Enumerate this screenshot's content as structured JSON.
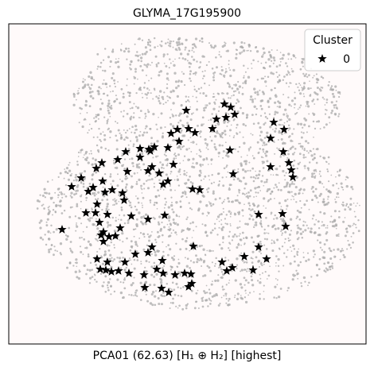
{
  "chart_data": {
    "type": "scatter",
    "title": "GLYMA_17G195900",
    "xlabel": "PCA01 (62.63) [H₁ ⊕ H₂] [highest]",
    "ylabel": "",
    "grid": false,
    "axes_visible": false,
    "legend": {
      "title": "Cluster",
      "placement": "top-right",
      "entries": [
        {
          "label": "0",
          "marker": "star",
          "color": "#000000"
        }
      ]
    },
    "colors": {
      "background_cells": "#a9a9a9",
      "highlight": "#000000",
      "plot_background": "#fffafa"
    },
    "series": [
      {
        "name": "0",
        "marker": "star",
        "points": [
          [
            234,
            139
          ],
          [
            282,
            131
          ],
          [
            290,
            135
          ],
          [
            284,
            148
          ],
          [
            295,
            144
          ],
          [
            272,
            150
          ],
          [
            267,
            162
          ],
          [
            237,
            162
          ],
          [
            245,
            167
          ],
          [
            223,
            163
          ],
          [
            215,
            168
          ],
          [
            225,
            178
          ],
          [
            211,
            186
          ],
          [
            194,
            185
          ],
          [
            187,
            188
          ],
          [
            176,
            187
          ],
          [
            158,
            191
          ],
          [
            176,
            198
          ],
          [
            148,
            201
          ],
          [
            128,
            205
          ],
          [
            121,
            212
          ],
          [
            102,
            224
          ],
          [
            90,
            235
          ],
          [
            111,
            241
          ],
          [
            117,
            236
          ],
          [
            129,
            228
          ],
          [
            141,
            239
          ],
          [
            154,
            243
          ],
          [
            160,
            216
          ],
          [
            186,
            215
          ],
          [
            200,
            218
          ],
          [
            211,
            228
          ],
          [
            205,
            232
          ],
          [
            218,
            207
          ],
          [
            242,
            238
          ],
          [
            251,
            239
          ],
          [
            189,
            190
          ],
          [
            191,
            210
          ],
          [
            289,
            189
          ],
          [
            293,
            219
          ],
          [
            344,
            154
          ],
          [
            357,
            163
          ],
          [
            340,
            174
          ],
          [
            356,
            191
          ],
          [
            363,
            205
          ],
          [
            340,
            210
          ],
          [
            366,
            214
          ],
          [
            368,
            223
          ],
          [
            132,
            242
          ],
          [
            156,
            252
          ],
          [
            122,
            257
          ],
          [
            108,
            268
          ],
          [
            120,
            268
          ],
          [
            135,
            270
          ],
          [
            125,
            280
          ],
          [
            165,
            272
          ],
          [
            186,
            276
          ],
          [
            207,
            271
          ],
          [
            78,
            289
          ],
          [
            130,
            292
          ],
          [
            137,
            298
          ],
          [
            127,
            296
          ],
          [
            145,
            297
          ],
          [
            151,
            287
          ],
          [
            130,
            304
          ],
          [
            122,
            326
          ],
          [
            135,
            330
          ],
          [
            157,
            330
          ],
          [
            170,
            320
          ],
          [
            186,
            318
          ],
          [
            191,
            311
          ],
          [
            204,
            328
          ],
          [
            197,
            339
          ],
          [
            126,
            339
          ],
          [
            133,
            340
          ],
          [
            140,
            342
          ],
          [
            149,
            341
          ],
          [
            162,
            344
          ],
          [
            181,
            346
          ],
          [
            205,
            344
          ],
          [
            220,
            346
          ],
          [
            232,
            344
          ],
          [
            240,
            345
          ],
          [
            243,
            310
          ],
          [
            279,
            330
          ],
          [
            285,
            341
          ],
          [
            292,
            337
          ],
          [
            307,
            323
          ],
          [
            318,
            340
          ],
          [
            335,
            326
          ],
          [
            325,
            311
          ],
          [
            325,
            270
          ],
          [
            355,
            269
          ],
          [
            359,
            285
          ],
          [
            182,
            362
          ],
          [
            203,
            363
          ],
          [
            212,
            368
          ],
          [
            237,
            361
          ],
          [
            241,
            357
          ]
        ]
      }
    ]
  }
}
